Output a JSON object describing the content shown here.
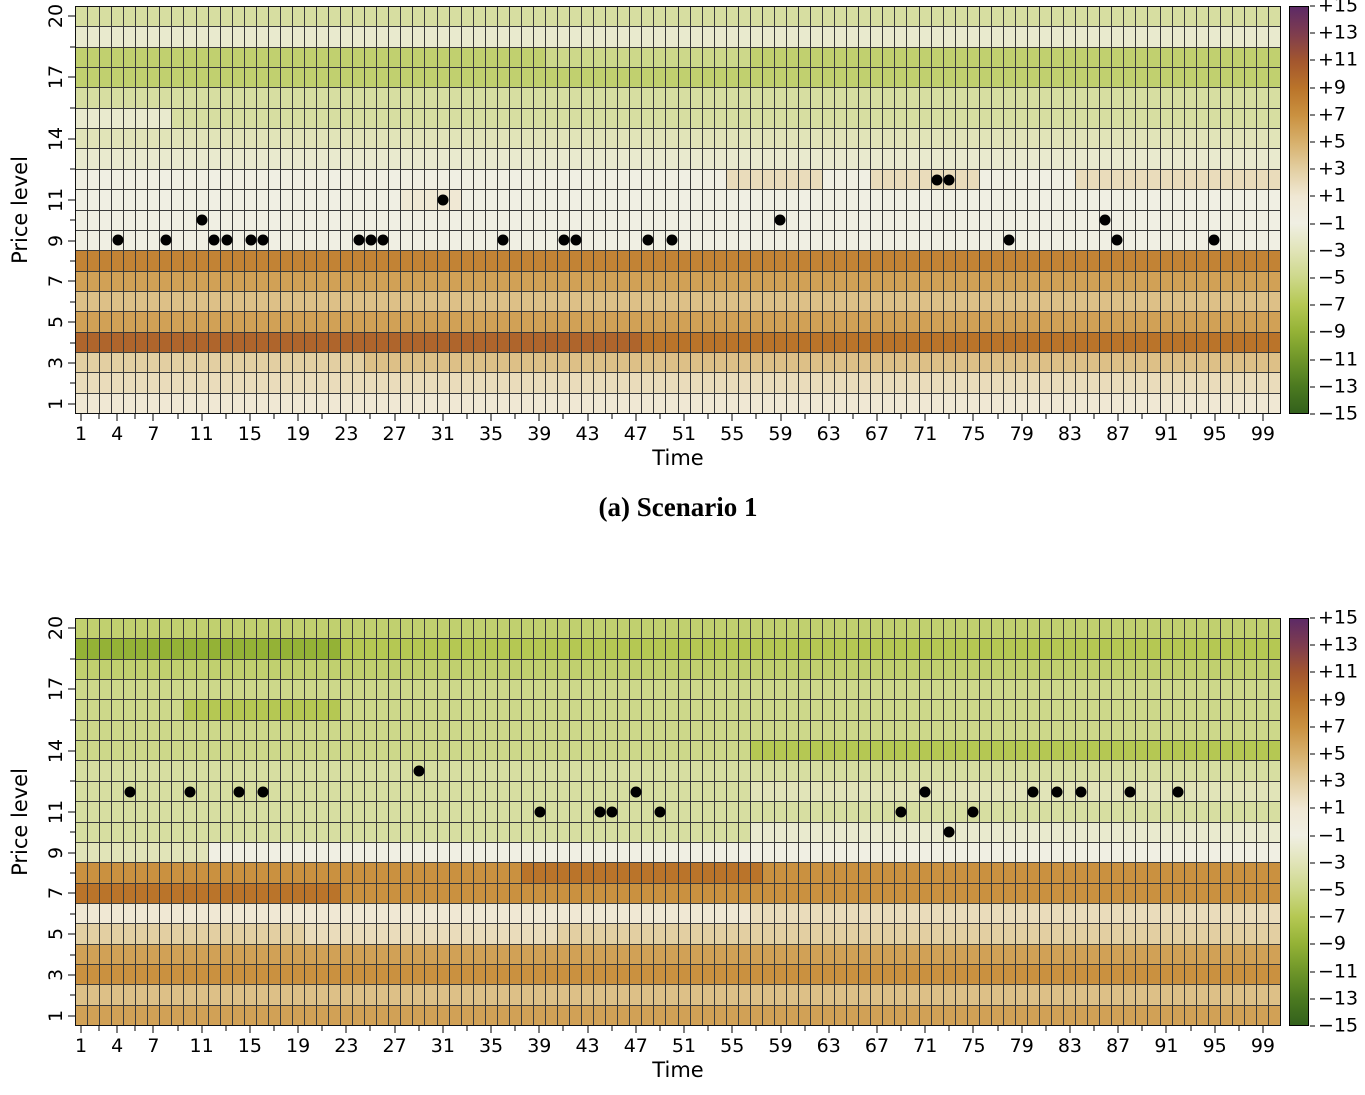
{
  "caption": {
    "text": "(a) Scenario 1"
  },
  "axis": {
    "x_label": "Time",
    "y_label": "Price level",
    "x_tick_labels": [
      1,
      4,
      7,
      11,
      15,
      19,
      23,
      27,
      31,
      35,
      39,
      43,
      47,
      51,
      55,
      59,
      63,
      67,
      71,
      75,
      79,
      83,
      87,
      91,
      95,
      99
    ],
    "y_tick_labels": [
      1,
      3,
      5,
      7,
      9,
      11,
      14,
      17,
      20
    ]
  },
  "colorbar": {
    "vmin": -15,
    "vmax": 15,
    "tick_labels": [
      "+15",
      "+13",
      "+11",
      "+9",
      "+7",
      "+5",
      "+3",
      "+1",
      "−1",
      "−3",
      "−5",
      "−7",
      "−9",
      "−11",
      "−13",
      "−15"
    ],
    "anchors": [
      {
        "v": -15,
        "color": "#33611c"
      },
      {
        "v": -13,
        "color": "#4c7a20"
      },
      {
        "v": -11,
        "color": "#6f9629"
      },
      {
        "v": -9,
        "color": "#94b236"
      },
      {
        "v": -7,
        "color": "#b5c853"
      },
      {
        "v": -5,
        "color": "#cdd88a"
      },
      {
        "v": -3,
        "color": "#e1e4b8"
      },
      {
        "v": -1,
        "color": "#f0efe3"
      },
      {
        "v": 1,
        "color": "#f0e8d4"
      },
      {
        "v": 3,
        "color": "#e3cfa2"
      },
      {
        "v": 5,
        "color": "#d7b06c"
      },
      {
        "v": 7,
        "color": "#ca9140"
      },
      {
        "v": 9,
        "color": "#ba742a"
      },
      {
        "v": 11,
        "color": "#a3562e"
      },
      {
        "v": 13,
        "color": "#7f3d4e"
      },
      {
        "v": 15,
        "color": "#5d2a66"
      }
    ]
  },
  "grid": {
    "line_color": "#3a3a3a",
    "dot_color": "#000000"
  },
  "chart_data": [
    {
      "type": "heatmap",
      "title": "(a) Scenario 1",
      "xlabel": "Time",
      "ylabel": "Price level",
      "time_steps": 100,
      "price_levels": 20,
      "value_range": [
        -15,
        15
      ],
      "rows": [
        {
          "price": 1,
          "value": 1
        },
        {
          "price": 2,
          "value": 2
        },
        {
          "price": 3,
          "value": 4,
          "segments": [
            {
              "from": 1,
              "to": 24,
              "value": 3
            }
          ]
        },
        {
          "price": 4,
          "value": 10,
          "segments": [
            {
              "from": 48,
              "to": 100,
              "value": 9
            }
          ]
        },
        {
          "price": 5,
          "value": 6
        },
        {
          "price": 6,
          "value": 4
        },
        {
          "price": 7,
          "value": 6
        },
        {
          "price": 8,
          "value": 8
        },
        {
          "price": 9,
          "value": -1
        },
        {
          "price": 10,
          "value": -1
        },
        {
          "price": 11,
          "value": -1,
          "segments": [
            {
              "from": 28,
              "to": 32,
              "value": 1
            }
          ]
        },
        {
          "price": 12,
          "value": -1,
          "segments": [
            {
              "from": 55,
              "to": 62,
              "value": 2
            },
            {
              "from": 67,
              "to": 75,
              "value": 2
            },
            {
              "from": 84,
              "to": 100,
              "value": 2
            }
          ]
        },
        {
          "price": 13,
          "value": -2
        },
        {
          "price": 14,
          "value": -3
        },
        {
          "price": 15,
          "value": -4,
          "segments": [
            {
              "from": 1,
              "to": 8,
              "value": -2
            }
          ]
        },
        {
          "price": 16,
          "value": -4
        },
        {
          "price": 17,
          "value": -6
        },
        {
          "price": 18,
          "value": -6,
          "segments": [
            {
              "from": 40,
              "to": 56,
              "value": -5
            }
          ]
        },
        {
          "price": 19,
          "value": -2
        },
        {
          "price": 20,
          "value": -4
        }
      ],
      "dots": [
        [
          4,
          9
        ],
        [
          8,
          9
        ],
        [
          11,
          10
        ],
        [
          12,
          9
        ],
        [
          13,
          9
        ],
        [
          15,
          9
        ],
        [
          16,
          9
        ],
        [
          24,
          9
        ],
        [
          25,
          9
        ],
        [
          26,
          9
        ],
        [
          31,
          11
        ],
        [
          36,
          9
        ],
        [
          41,
          9
        ],
        [
          42,
          9
        ],
        [
          48,
          9
        ],
        [
          50,
          9
        ],
        [
          59,
          10
        ],
        [
          72,
          12
        ],
        [
          73,
          12
        ],
        [
          78,
          9
        ],
        [
          86,
          10
        ],
        [
          87,
          9
        ],
        [
          95,
          9
        ]
      ]
    },
    {
      "type": "heatmap",
      "title": "",
      "xlabel": "Time",
      "ylabel": "Price level",
      "time_steps": 100,
      "price_levels": 20,
      "value_range": [
        -15,
        15
      ],
      "rows": [
        {
          "price": 1,
          "value": 6
        },
        {
          "price": 2,
          "value": 4
        },
        {
          "price": 3,
          "value": 7
        },
        {
          "price": 4,
          "value": 6
        },
        {
          "price": 5,
          "value": 3,
          "segments": [
            {
              "from": 20,
              "to": 40,
              "value": 2
            }
          ]
        },
        {
          "price": 6,
          "value": 1,
          "segments": [
            {
              "from": 57,
              "to": 100,
              "value": 2
            }
          ]
        },
        {
          "price": 7,
          "value": 7,
          "segments": [
            {
              "from": 1,
              "to": 22,
              "value": 9
            }
          ]
        },
        {
          "price": 8,
          "value": 7,
          "segments": [
            {
              "from": 38,
              "to": 57,
              "value": 9
            }
          ]
        },
        {
          "price": 9,
          "value": -3,
          "segments": [
            {
              "from": 12,
              "to": 100,
              "value": -1
            }
          ]
        },
        {
          "price": 10,
          "value": -4,
          "segments": [
            {
              "from": 57,
              "to": 100,
              "value": -2
            }
          ]
        },
        {
          "price": 11,
          "value": -4
        },
        {
          "price": 12,
          "value": -4,
          "segments": [
            {
              "from": 57,
              "to": 100,
              "value": -3
            }
          ]
        },
        {
          "price": 13,
          "value": -4
        },
        {
          "price": 14,
          "value": -5,
          "segments": [
            {
              "from": 57,
              "to": 100,
              "value": -7
            }
          ]
        },
        {
          "price": 15,
          "value": -5
        },
        {
          "price": 16,
          "value": -5,
          "segments": [
            {
              "from": 10,
              "to": 22,
              "value": -7
            }
          ]
        },
        {
          "price": 17,
          "value": -5
        },
        {
          "price": 18,
          "value": -6
        },
        {
          "price": 19,
          "value": -7,
          "segments": [
            {
              "from": 1,
              "to": 22,
              "value": -9
            }
          ]
        },
        {
          "price": 20,
          "value": -6
        }
      ],
      "dots": [
        [
          5,
          12
        ],
        [
          10,
          12
        ],
        [
          14,
          12
        ],
        [
          16,
          12
        ],
        [
          29,
          13
        ],
        [
          39,
          11
        ],
        [
          44,
          11
        ],
        [
          45,
          11
        ],
        [
          47,
          12
        ],
        [
          49,
          11
        ],
        [
          69,
          11
        ],
        [
          71,
          12
        ],
        [
          73,
          10
        ],
        [
          75,
          11
        ],
        [
          80,
          12
        ],
        [
          82,
          12
        ],
        [
          84,
          12
        ],
        [
          88,
          12
        ],
        [
          92,
          12
        ]
      ]
    }
  ]
}
